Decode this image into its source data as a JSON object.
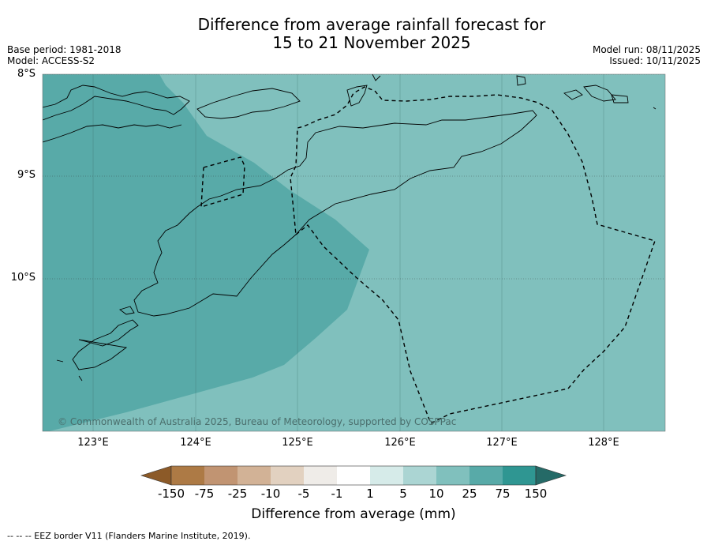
{
  "title": {
    "line1": "Difference from average rainfall forecast for",
    "line2": "15 to 21 November 2025"
  },
  "meta": {
    "base_period": "Base period: 1981-2018",
    "model": "Model: ACCESS-S2",
    "model_run": "Model run: 08/11/2025",
    "issued": "Issued: 10/11/2025"
  },
  "axes": {
    "lat_labels": [
      "8°S",
      "9°S",
      "10°S"
    ],
    "lon_labels": [
      "123°E",
      "124°E",
      "125°E",
      "126°E",
      "127°E",
      "128°E"
    ]
  },
  "colorbar": {
    "ticks": [
      "-150",
      "-75",
      "-25",
      "-10",
      "-5",
      "-1",
      "1",
      "5",
      "10",
      "25",
      "75",
      "150"
    ],
    "colors": [
      "#8c5a28",
      "#ad7a45",
      "#c19472",
      "#d2b296",
      "#e2d1c0",
      "#efece8",
      "#ffffff",
      "#d6ebe9",
      "#abd5d3",
      "#80c0bd",
      "#58aaa8",
      "#2f9692",
      "#256a67"
    ],
    "label": "Difference from average (mm)"
  },
  "map": {
    "copyright": "© Commonwealth of Australia 2025, Bureau of Meteorology, supported by COSPPac",
    "fill_colors": {
      "band_10_25": "#80c0bd",
      "band_25_75": "#58aaa8"
    }
  },
  "footer": {
    "legend": "--  --  -- EEZ border V11 (Flanders Marine Institute, 2019)."
  }
}
